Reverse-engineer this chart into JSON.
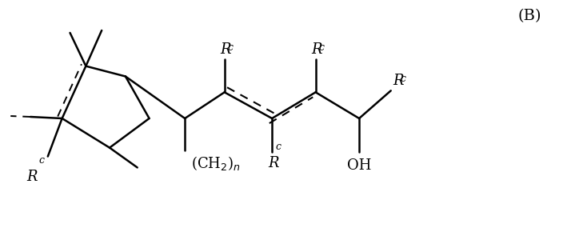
{
  "bg_color": "#ffffff",
  "line_color": "#000000",
  "figsize": [
    7.09,
    2.95
  ],
  "dpi": 100,
  "label_B": "(B)",
  "label_OH": "OH",
  "label_CH2n": "(CH$_2$)$_n$"
}
